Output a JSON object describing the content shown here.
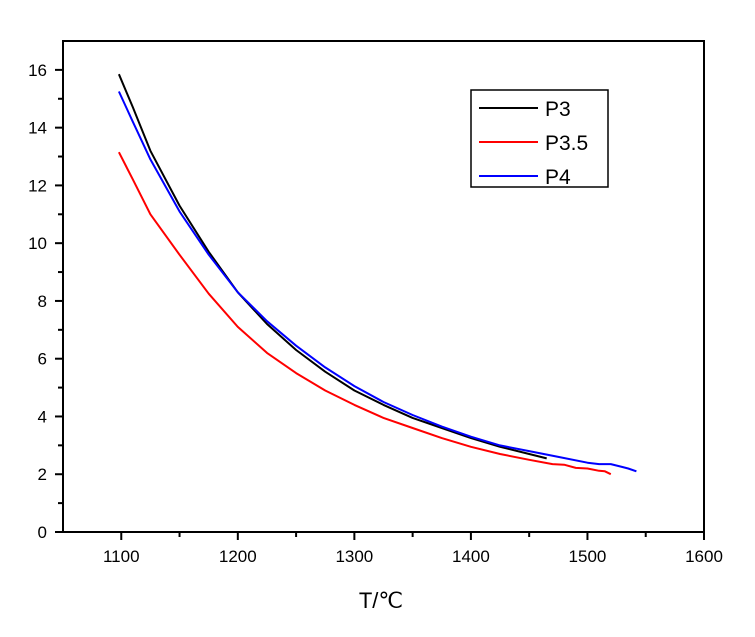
{
  "chart_data": {
    "type": "line",
    "title": "",
    "xlabel": "T/℃",
    "ylabel": "",
    "xlim": [
      1050,
      1600
    ],
    "ylim": [
      0,
      17
    ],
    "xticks": [
      1100,
      1200,
      1300,
      1400,
      1500,
      1600
    ],
    "yticks": [
      0,
      2,
      4,
      6,
      8,
      10,
      12,
      14,
      16
    ],
    "grid": false,
    "legend_position": "top-right",
    "series": [
      {
        "name": "P3",
        "color": "#000000",
        "x": [
          1098,
          1110,
          1125,
          1150,
          1175,
          1200,
          1225,
          1250,
          1275,
          1300,
          1325,
          1350,
          1375,
          1400,
          1425,
          1450,
          1465
        ],
        "y": [
          15.85,
          14.7,
          13.2,
          11.3,
          9.7,
          8.3,
          7.2,
          6.3,
          5.55,
          4.9,
          4.4,
          3.95,
          3.6,
          3.25,
          2.95,
          2.7,
          2.55
        ]
      },
      {
        "name": "P3.5",
        "color": "#ff0000",
        "x": [
          1098,
          1110,
          1125,
          1150,
          1175,
          1200,
          1225,
          1250,
          1275,
          1300,
          1325,
          1350,
          1375,
          1400,
          1425,
          1450,
          1470,
          1480,
          1490,
          1500,
          1510,
          1515,
          1520
        ],
        "y": [
          13.15,
          12.2,
          11.0,
          9.6,
          8.25,
          7.1,
          6.2,
          5.5,
          4.9,
          4.4,
          3.95,
          3.6,
          3.25,
          2.95,
          2.7,
          2.5,
          2.35,
          2.33,
          2.22,
          2.2,
          2.12,
          2.1,
          2.0
        ]
      },
      {
        "name": "P4",
        "color": "#0000ff",
        "x": [
          1098,
          1110,
          1125,
          1150,
          1175,
          1200,
          1225,
          1250,
          1275,
          1300,
          1325,
          1350,
          1375,
          1400,
          1425,
          1450,
          1475,
          1500,
          1510,
          1520,
          1530,
          1535,
          1542
        ],
        "y": [
          15.25,
          14.2,
          12.9,
          11.1,
          9.6,
          8.3,
          7.3,
          6.45,
          5.7,
          5.05,
          4.5,
          4.05,
          3.65,
          3.3,
          3.0,
          2.8,
          2.6,
          2.4,
          2.35,
          2.35,
          2.25,
          2.2,
          2.1
        ]
      }
    ]
  }
}
